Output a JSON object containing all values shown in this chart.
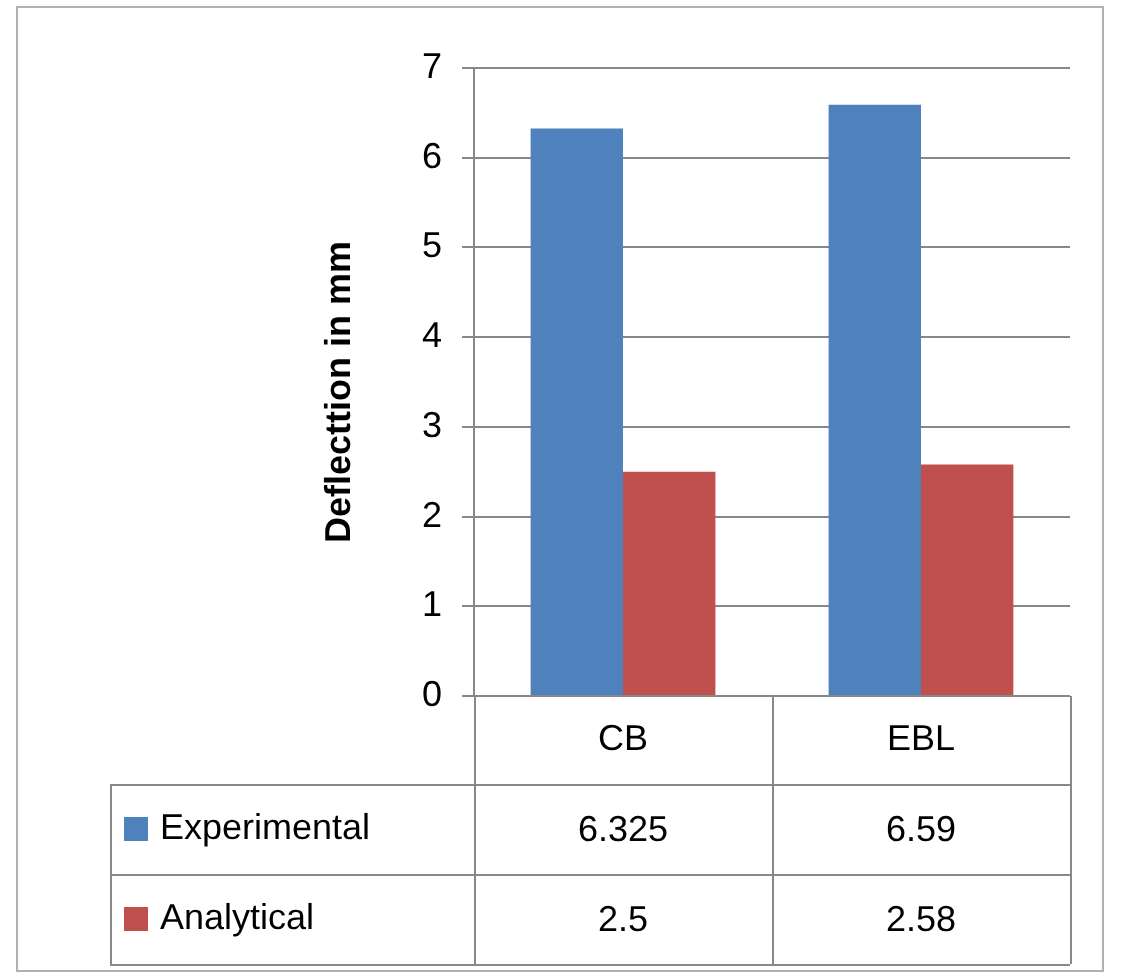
{
  "chart_data": {
    "type": "bar",
    "ylabel": "Deflecttion in mm",
    "categories": [
      "CB",
      "EBL"
    ],
    "series": [
      {
        "name": "Experimental",
        "color": "#4f81bd",
        "values": [
          6.325,
          6.59
        ]
      },
      {
        "name": "Analytical",
        "color": "#c0504d",
        "values": [
          2.5,
          2.58
        ]
      }
    ],
    "ylim": [
      0,
      7
    ],
    "yticks": [
      0,
      1,
      2,
      3,
      4,
      5,
      6,
      7
    ],
    "grid": "y",
    "legend": "bottom",
    "data_labels": true
  }
}
